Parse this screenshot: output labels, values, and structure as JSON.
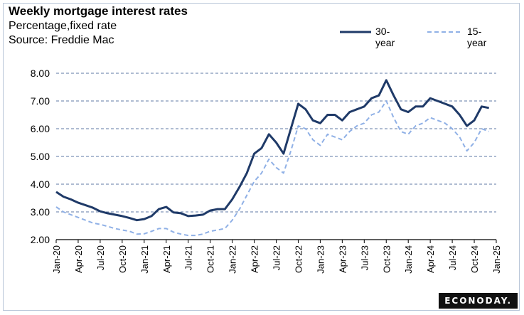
{
  "header": {
    "title": "Weekly mortgage interest rates",
    "subtitle": "Percentage,fixed rate",
    "source": "Source:  Freddie Mac"
  },
  "brand": {
    "logo_text": "ECONODAY."
  },
  "colors": {
    "series_30": "#1f3a68",
    "series_15": "#8fb0e6",
    "grid": "#7f94b6"
  },
  "chart_data": {
    "type": "line",
    "title": "Weekly mortgage interest rates",
    "subtitle": "Percentage,fixed rate",
    "source": "Source:  Freddie Mac",
    "xlabel": "",
    "ylabel": "",
    "ylim": [
      2.0,
      8.0
    ],
    "yticks": [
      "2.00",
      "3.00",
      "4.00",
      "5.00",
      "6.00",
      "7.00",
      "8.00"
    ],
    "xticks": [
      "Jan-20",
      "Apr-20",
      "Jul-20",
      "Oct-20",
      "Jan-21",
      "Apr-21",
      "Jul-21",
      "Oct-21",
      "Jan-22",
      "Apr-22",
      "Jul-22",
      "Oct-22",
      "Jan-23",
      "Apr-23",
      "Jul-23",
      "Oct-23",
      "Jan-24",
      "Apr-24",
      "Jul-24",
      "Oct-24",
      "Jan-25"
    ],
    "grid": "horizontal dashed",
    "legend": "top-right",
    "series": [
      {
        "name": "30-year",
        "style": "solid",
        "points": [
          [
            "Jan-20",
            3.72
          ],
          [
            "Feb-20",
            3.55
          ],
          [
            "Mar-20",
            3.45
          ],
          [
            "Apr-20",
            3.33
          ],
          [
            "May-20",
            3.24
          ],
          [
            "Jun-20",
            3.15
          ],
          [
            "Jul-20",
            3.02
          ],
          [
            "Aug-20",
            2.95
          ],
          [
            "Sep-20",
            2.9
          ],
          [
            "Oct-20",
            2.85
          ],
          [
            "Nov-20",
            2.78
          ],
          [
            "Dec-20",
            2.7
          ],
          [
            "Jan-21",
            2.74
          ],
          [
            "Feb-21",
            2.85
          ],
          [
            "Mar-21",
            3.1
          ],
          [
            "Apr-21",
            3.18
          ],
          [
            "May-21",
            2.98
          ],
          [
            "Jun-21",
            2.95
          ],
          [
            "Jul-21",
            2.85
          ],
          [
            "Aug-21",
            2.87
          ],
          [
            "Sep-21",
            2.9
          ],
          [
            "Oct-21",
            3.05
          ],
          [
            "Nov-21",
            3.1
          ],
          [
            "Dec-21",
            3.1
          ],
          [
            "Jan-22",
            3.45
          ],
          [
            "Feb-22",
            3.9
          ],
          [
            "Mar-22",
            4.4
          ],
          [
            "Apr-22",
            5.1
          ],
          [
            "May-22",
            5.3
          ],
          [
            "Jun-22",
            5.8
          ],
          [
            "Jul-22",
            5.5
          ],
          [
            "Aug-22",
            5.1
          ],
          [
            "Sep-22",
            6.0
          ],
          [
            "Oct-22",
            6.9
          ],
          [
            "Nov-22",
            6.7
          ],
          [
            "Dec-22",
            6.3
          ],
          [
            "Jan-23",
            6.2
          ],
          [
            "Feb-23",
            6.5
          ],
          [
            "Mar-23",
            6.5
          ],
          [
            "Apr-23",
            6.3
          ],
          [
            "May-23",
            6.6
          ],
          [
            "Jun-23",
            6.7
          ],
          [
            "Jul-23",
            6.8
          ],
          [
            "Aug-23",
            7.1
          ],
          [
            "Sep-23",
            7.2
          ],
          [
            "Oct-23",
            7.75
          ],
          [
            "Nov-23",
            7.2
          ],
          [
            "Dec-23",
            6.7
          ],
          [
            "Jan-24",
            6.6
          ],
          [
            "Feb-24",
            6.8
          ],
          [
            "Mar-24",
            6.8
          ],
          [
            "Apr-24",
            7.1
          ],
          [
            "May-24",
            7.0
          ],
          [
            "Jun-24",
            6.9
          ],
          [
            "Jul-24",
            6.8
          ],
          [
            "Aug-24",
            6.5
          ],
          [
            "Sep-24",
            6.1
          ],
          [
            "Oct-24",
            6.3
          ],
          [
            "Nov-24",
            6.8
          ],
          [
            "Dec-24",
            6.75
          ]
        ]
      },
      {
        "name": "15-year",
        "style": "dashed",
        "points": [
          [
            "Jan-20",
            3.18
          ],
          [
            "Feb-20",
            3.0
          ],
          [
            "Mar-20",
            2.9
          ],
          [
            "Apr-20",
            2.8
          ],
          [
            "May-20",
            2.7
          ],
          [
            "Jun-20",
            2.6
          ],
          [
            "Jul-20",
            2.55
          ],
          [
            "Aug-20",
            2.48
          ],
          [
            "Sep-20",
            2.4
          ],
          [
            "Oct-20",
            2.35
          ],
          [
            "Nov-20",
            2.3
          ],
          [
            "Dec-20",
            2.2
          ],
          [
            "Jan-21",
            2.21
          ],
          [
            "Feb-21",
            2.3
          ],
          [
            "Mar-21",
            2.4
          ],
          [
            "Apr-21",
            2.4
          ],
          [
            "May-21",
            2.27
          ],
          [
            "Jun-21",
            2.2
          ],
          [
            "Jul-21",
            2.15
          ],
          [
            "Aug-21",
            2.15
          ],
          [
            "Sep-21",
            2.2
          ],
          [
            "Oct-21",
            2.3
          ],
          [
            "Nov-21",
            2.35
          ],
          [
            "Dec-21",
            2.4
          ],
          [
            "Jan-22",
            2.7
          ],
          [
            "Feb-22",
            3.1
          ],
          [
            "Mar-22",
            3.6
          ],
          [
            "Apr-22",
            4.1
          ],
          [
            "May-22",
            4.4
          ],
          [
            "Jun-22",
            4.9
          ],
          [
            "Jul-22",
            4.6
          ],
          [
            "Aug-22",
            4.4
          ],
          [
            "Sep-22",
            5.2
          ],
          [
            "Oct-22",
            6.1
          ],
          [
            "Nov-22",
            6.0
          ],
          [
            "Dec-22",
            5.6
          ],
          [
            "Jan-23",
            5.4
          ],
          [
            "Feb-23",
            5.8
          ],
          [
            "Mar-23",
            5.7
          ],
          [
            "Apr-23",
            5.6
          ],
          [
            "May-23",
            5.9
          ],
          [
            "Jun-23",
            6.1
          ],
          [
            "Jul-23",
            6.2
          ],
          [
            "Aug-23",
            6.5
          ],
          [
            "Sep-23",
            6.6
          ],
          [
            "Oct-23",
            7.0
          ],
          [
            "Nov-23",
            6.4
          ],
          [
            "Dec-23",
            5.9
          ],
          [
            "Jan-24",
            5.8
          ],
          [
            "Feb-24",
            6.1
          ],
          [
            "Mar-24",
            6.2
          ],
          [
            "Apr-24",
            6.4
          ],
          [
            "May-24",
            6.3
          ],
          [
            "Jun-24",
            6.2
          ],
          [
            "Jul-24",
            6.0
          ],
          [
            "Aug-24",
            5.7
          ],
          [
            "Sep-24",
            5.2
          ],
          [
            "Oct-24",
            5.5
          ],
          [
            "Nov-24",
            6.0
          ],
          [
            "Dec-24",
            5.9
          ]
        ]
      }
    ]
  }
}
